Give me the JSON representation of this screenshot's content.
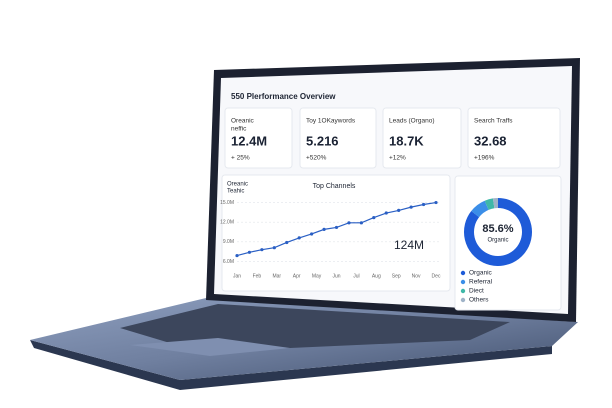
{
  "title": "550 Plerformance Overview",
  "cards": [
    {
      "label": [
        "Oreanic",
        "neffic"
      ],
      "value": "12.4M",
      "change": "+ 25%"
    },
    {
      "label": [
        "Toy 1OKaywords"
      ],
      "value": "5.216",
      "change": "+520%"
    },
    {
      "label": [
        "Leads (Organo)"
      ],
      "value": "18.7K",
      "change": "+12%"
    },
    {
      "label": [
        "Search Traffs"
      ],
      "value": "32.68",
      "change": "+196%"
    }
  ],
  "chart_data": [
    {
      "type": "line",
      "title": "Top Channels",
      "subtitle": [
        "Oreanic",
        "Teahic"
      ],
      "annotation": "124M",
      "x": [
        0,
        1,
        2,
        3,
        4,
        5,
        6,
        7,
        8,
        9,
        10,
        11,
        12,
        13,
        14,
        15,
        16
      ],
      "values": [
        6.9,
        7.4,
        7.8,
        8.1,
        8.9,
        9.6,
        10.2,
        10.9,
        11.2,
        11.9,
        11.9,
        12.7,
        13.4,
        13.8,
        14.3,
        14.7,
        15.0
      ],
      "color": "#2a5fc4",
      "xlim": [
        0,
        16
      ],
      "xticks": [
        {
          "value": 0,
          "label": "Jan"
        },
        {
          "value": 1.6,
          "label": "Feb"
        },
        {
          "value": 3.2,
          "label": "Mar"
        },
        {
          "value": 4.8,
          "label": "Apr"
        },
        {
          "value": 6.4,
          "label": "May"
        },
        {
          "value": 8,
          "label": "Jun"
        },
        {
          "value": 9.6,
          "label": "Jul"
        },
        {
          "value": 11.2,
          "label": "Aug"
        },
        {
          "value": 12.8,
          "label": "Sep"
        },
        {
          "value": 14.4,
          "label": "Nov"
        },
        {
          "value": 16,
          "label": "Dec"
        }
      ],
      "ylim": [
        5,
        16
      ],
      "yticks": [
        {
          "value": 6,
          "label": "6.0M"
        },
        {
          "value": 9,
          "label": "9.0M"
        },
        {
          "value": 12,
          "label": "12.0M"
        },
        {
          "value": 15,
          "label": "15.0M"
        }
      ],
      "grid": true
    },
    {
      "type": "donut",
      "center_value": "85.6%",
      "center_label": "Organic",
      "categories": [
        "Organic",
        "Referral",
        "Diect",
        "Others"
      ],
      "values": [
        85.6,
        8,
        4,
        2.4
      ],
      "colors": [
        "#1e5bd8",
        "#3b8ee8",
        "#3fb8a8",
        "#9fb3c8"
      ]
    }
  ]
}
